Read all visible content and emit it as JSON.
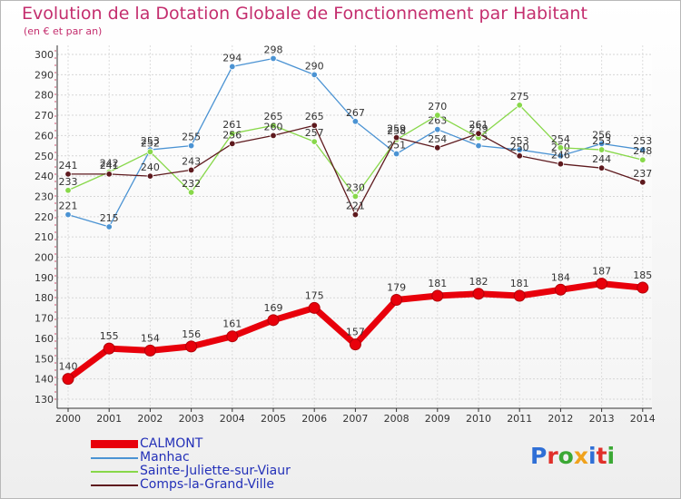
{
  "chart_data": {
    "type": "line",
    "title": "Evolution de la Dotation Globale de Fonctionnement par Habitant",
    "subtitle": "(en € et par an)",
    "xlabel": "",
    "ylabel": "",
    "x": [
      "2000",
      "2001",
      "2002",
      "2003",
      "2004",
      "2005",
      "2006",
      "2007",
      "2008",
      "2009",
      "2010",
      "2011",
      "2012",
      "2013",
      "2014"
    ],
    "ylim": [
      130,
      300
    ],
    "yticks": [
      130,
      140,
      150,
      160,
      170,
      180,
      190,
      200,
      210,
      220,
      230,
      240,
      250,
      260,
      270,
      280,
      290,
      300
    ],
    "grid": true,
    "legend_position": "bottom-left",
    "series": [
      {
        "name": "CALMONT",
        "color": "#e8000b",
        "values": [
          140,
          155,
          154,
          156,
          161,
          169,
          175,
          157,
          179,
          181,
          182,
          181,
          184,
          187,
          185
        ]
      },
      {
        "name": "Manhac",
        "color": "#4b93d3",
        "values": [
          221,
          215,
          253,
          255,
          294,
          298,
          290,
          267,
          251,
          263,
          255,
          253,
          250,
          256,
          253
        ]
      },
      {
        "name": "Sainte-Juliette-sur-Viaur",
        "color": "#88d84a",
        "values": [
          233,
          242,
          252,
          232,
          261,
          265,
          257,
          230,
          258,
          270,
          259,
          275,
          254,
          253,
          248
        ]
      },
      {
        "name": "Comps-la-Grand-Ville",
        "color": "#5e1a1e",
        "values": [
          241,
          241,
          240,
          243,
          256,
          260,
          265,
          221,
          259,
          254,
          261,
          250,
          246,
          244,
          237
        ]
      }
    ]
  },
  "branding": {
    "letters": [
      "P",
      "r",
      "o",
      "x",
      "i",
      "t",
      "i"
    ],
    "colors": [
      "#2f6fd6",
      "#e0302a",
      "#3ba834",
      "#f0a21c",
      "#2f6fd6",
      "#e0302a",
      "#3ba834"
    ]
  }
}
